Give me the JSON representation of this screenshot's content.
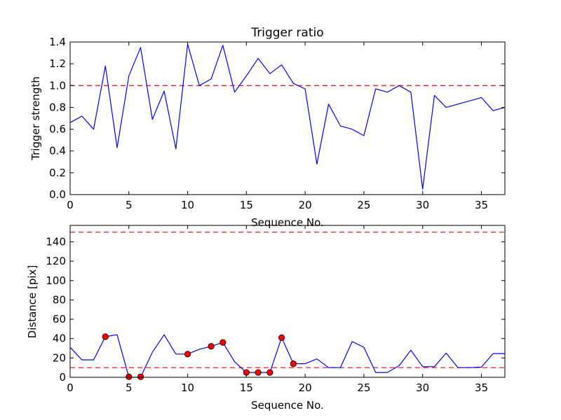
{
  "chart_data": [
    {
      "type": "line",
      "title": "Trigger ratio",
      "xlabel": "Sequence No.",
      "ylabel": "Trigger strength",
      "xlim": [
        0,
        37
      ],
      "ylim": [
        0,
        1.4
      ],
      "xticks": [
        0,
        5,
        10,
        15,
        20,
        25,
        30,
        35
      ],
      "yticks": [
        0.0,
        0.2,
        0.4,
        0.6,
        0.8,
        1.0,
        1.2,
        1.4
      ],
      "ytick_labels": [
        "0.0",
        "0.2",
        "0.4",
        "0.6",
        "0.8",
        "1.0",
        "1.2",
        "1.4"
      ],
      "grid": false,
      "series": [
        {
          "color": "#0000ff",
          "x": [
            0,
            1,
            2,
            3,
            4,
            5,
            6,
            7,
            8,
            9,
            10,
            11,
            12,
            13,
            14,
            15,
            16,
            17,
            18,
            19,
            20,
            21,
            22,
            23,
            24,
            25,
            26,
            27,
            28,
            29,
            30,
            31,
            32,
            35,
            36,
            37
          ],
          "values": [
            0.66,
            0.72,
            0.6,
            1.18,
            0.43,
            1.09,
            1.35,
            0.69,
            0.95,
            0.42,
            1.38,
            1.0,
            1.06,
            1.37,
            0.94,
            1.09,
            1.25,
            1.11,
            1.19,
            1.02,
            0.97,
            0.28,
            0.83,
            0.63,
            0.6,
            0.54,
            0.97,
            0.94,
            1.0,
            0.94,
            0.05,
            0.91,
            0.8,
            0.89,
            0.77,
            0.8
          ]
        }
      ],
      "reference_lines": [
        {
          "y": 1.0,
          "color": "#ff0000",
          "style": "dashed"
        }
      ]
    },
    {
      "type": "line",
      "title": "",
      "xlabel": "Sequence No.",
      "ylabel": "Distance [pix]",
      "xlim": [
        0,
        37
      ],
      "ylim": [
        0,
        157
      ],
      "xticks": [
        0,
        5,
        10,
        15,
        20,
        25,
        30,
        35
      ],
      "yticks": [
        0,
        20,
        40,
        60,
        80,
        100,
        120,
        140
      ],
      "ytick_labels": [
        "0",
        "20",
        "40",
        "60",
        "80",
        "100",
        "120",
        "140"
      ],
      "grid": false,
      "series": [
        {
          "color": "#0000ff",
          "x": [
            0,
            1,
            2,
            3,
            4,
            5,
            6,
            7,
            8,
            9,
            10,
            11,
            12,
            13,
            14,
            15,
            16,
            17,
            18,
            19,
            20,
            21,
            22,
            23,
            24,
            25,
            26,
            27,
            28,
            29,
            30,
            31,
            32,
            33,
            34,
            35,
            36,
            37
          ],
          "values": [
            31,
            18,
            18,
            42,
            44,
            0,
            0,
            26,
            44,
            24,
            24,
            29,
            32,
            36,
            16,
            5,
            5,
            5,
            41,
            14,
            14,
            19,
            10,
            10,
            37,
            31,
            5,
            5,
            12,
            28,
            11,
            11,
            25,
            10,
            10,
            10.5,
            24.5,
            24.5
          ]
        }
      ],
      "markers": {
        "color": "#ff0000",
        "x": [
          3,
          5,
          6,
          10,
          12,
          13,
          15,
          16,
          17,
          18,
          19
        ],
        "values": [
          42,
          0.5,
          0.5,
          24,
          32,
          36,
          5,
          5,
          5,
          41,
          14
        ]
      },
      "reference_lines": [
        {
          "y": 150,
          "color": "#ff0000",
          "style": "dashed"
        },
        {
          "y": 10,
          "color": "#ff0000",
          "style": "dashed"
        }
      ]
    }
  ]
}
